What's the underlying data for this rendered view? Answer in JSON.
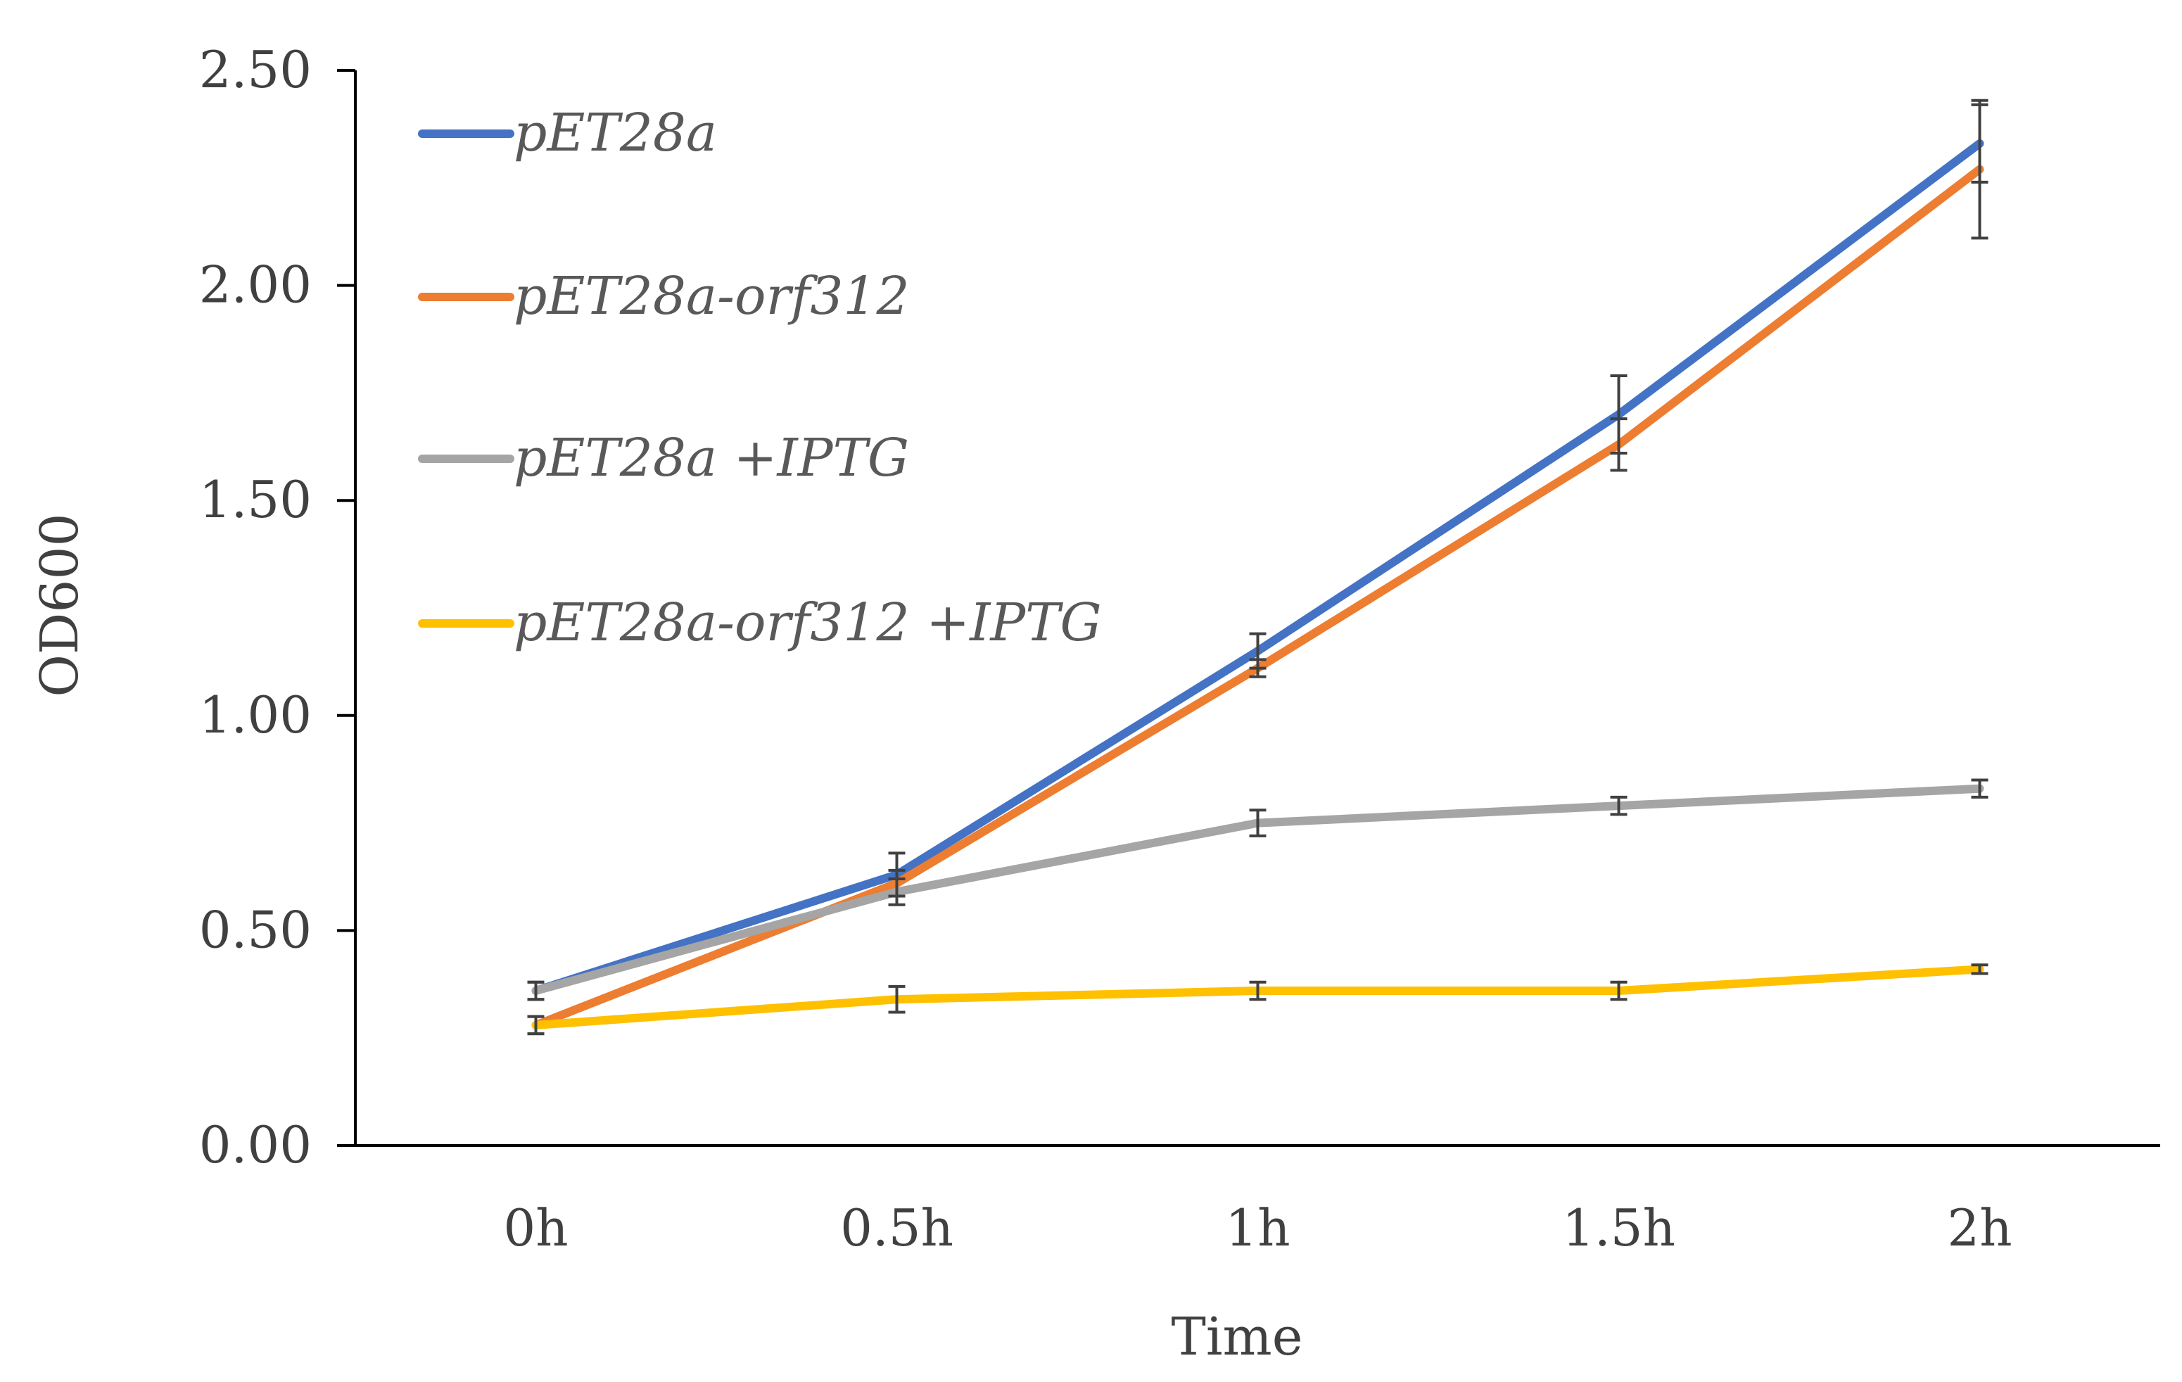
{
  "chart_data": {
    "type": "line",
    "title": "",
    "xlabel": "Time",
    "ylabel": "OD600",
    "categories": [
      "0h",
      "0.5h",
      "1h",
      "1.5h",
      "2h"
    ],
    "ylim": [
      0,
      2.5
    ],
    "yticks": [
      0,
      0.5,
      1.0,
      1.5,
      2.0,
      2.5
    ],
    "ytick_labels": [
      "0.00",
      "0.50",
      "1.00",
      "1.50",
      "2.00",
      "2.50"
    ],
    "legend_position": "top-left",
    "grid": false,
    "series": [
      {
        "name": "pET28a",
        "color": "#4472C4",
        "values": [
          0.36,
          0.63,
          1.15,
          1.7,
          2.33
        ],
        "errors": [
          0.02,
          0.05,
          0.04,
          0.09,
          0.09
        ]
      },
      {
        "name": "pET28a-orf312",
        "color": "#ED7D31",
        "values": [
          0.28,
          0.61,
          1.11,
          1.63,
          2.27
        ],
        "errors": [
          0.02,
          0.03,
          0.02,
          0.06,
          0.16
        ]
      },
      {
        "name": "pET28a +IPTG",
        "color": "#A5A5A5",
        "values": [
          0.36,
          0.59,
          0.75,
          0.79,
          0.83
        ],
        "errors": [
          0.02,
          0.03,
          0.03,
          0.02,
          0.02
        ]
      },
      {
        "name": "pET28a-orf312 +IPTG",
        "color": "#FFC000",
        "values": [
          0.28,
          0.34,
          0.36,
          0.36,
          0.41
        ],
        "errors": [
          0.02,
          0.03,
          0.02,
          0.02,
          0.01
        ]
      }
    ]
  }
}
